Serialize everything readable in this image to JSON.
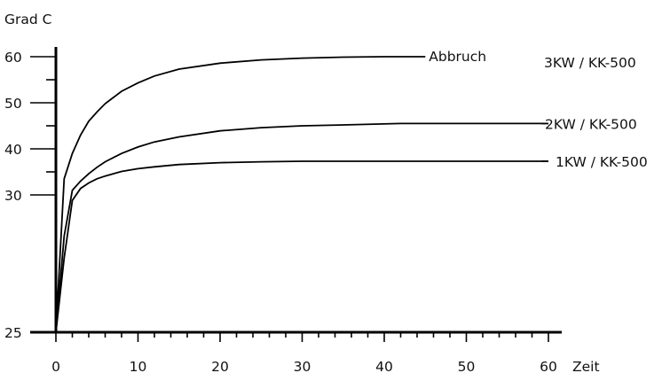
{
  "chart_data": {
    "type": "line",
    "ylabel": "Grad C",
    "xlabel": "Zeit",
    "x_ticks": [
      0,
      10,
      20,
      30,
      40,
      50,
      60
    ],
    "y_ticks": [
      25,
      30,
      40,
      50,
      60
    ],
    "xlim": [
      0,
      60
    ],
    "grid": false,
    "series": [
      {
        "name": "3KW / KK-500",
        "x": [
          0,
          1,
          2,
          3,
          4,
          5,
          6,
          8,
          10,
          12,
          15,
          20,
          25,
          30,
          35,
          40,
          45
        ],
        "y": [
          25,
          33.5,
          39,
          43,
          46,
          48,
          49.8,
          52.5,
          54.3,
          55.8,
          57.3,
          58.6,
          59.3,
          59.7,
          59.9,
          60,
          60
        ],
        "annotation": "Abbruch"
      },
      {
        "name": "2KW / KK-500",
        "x": [
          0,
          1,
          2,
          3,
          4,
          5,
          6,
          8,
          10,
          12,
          15,
          20,
          25,
          30,
          35,
          42,
          50,
          60
        ],
        "y": [
          25,
          28.5,
          31,
          33,
          34.6,
          36,
          37.2,
          39,
          40.4,
          41.5,
          42.6,
          43.9,
          44.6,
          45,
          45.2,
          45.5,
          45.5,
          45.5
        ]
      },
      {
        "name": "1KW / KK-500",
        "x": [
          0,
          1,
          2,
          3,
          4,
          5,
          6,
          8,
          10,
          12,
          15,
          20,
          25,
          30,
          40,
          50,
          60
        ],
        "y": [
          25,
          27.7,
          29.8,
          31.4,
          32.6,
          33.5,
          34.1,
          35.1,
          35.7,
          36.1,
          36.6,
          37,
          37.2,
          37.3,
          37.3,
          37.3,
          37.3
        ]
      }
    ]
  }
}
